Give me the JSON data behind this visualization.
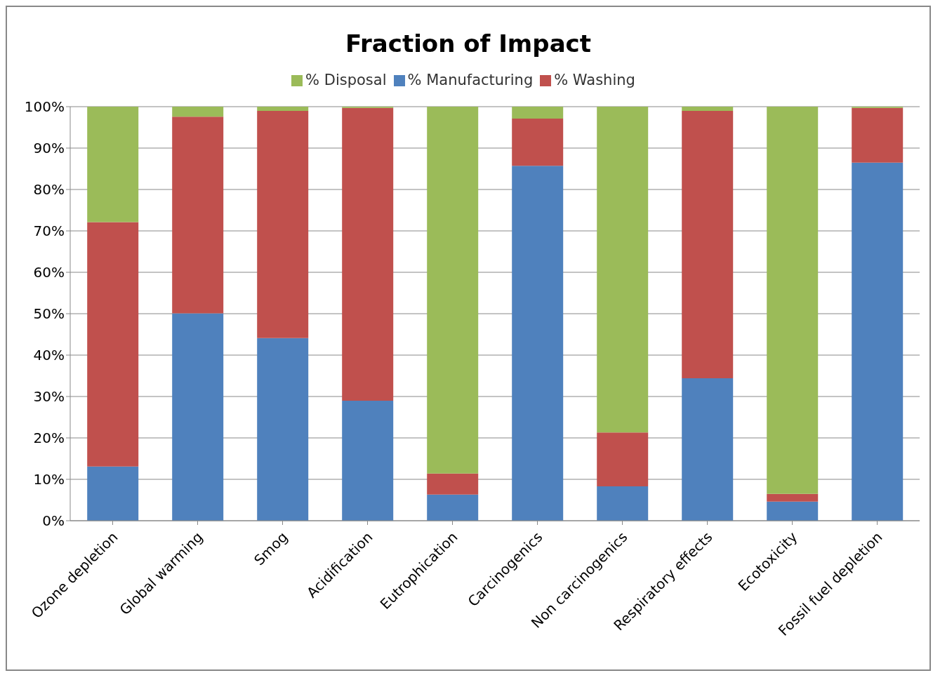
{
  "chart_data": {
    "type": "bar",
    "title": "Fraction of Impact",
    "stacked": true,
    "grid": "y",
    "legend": "top",
    "categories": [
      "Ozone depletion",
      "Global warming",
      "Smog",
      "Acidification",
      "Eutrophication",
      "Carcinogenics",
      "Non carcinogenics",
      "Respiratory effects",
      "Ecotoxicity",
      "Fossil fuel depletion"
    ],
    "series": [
      {
        "name": "% Manufacturing",
        "color": "#4f81bd",
        "values": [
          13.1,
          50.1,
          44.1,
          29.0,
          6.3,
          85.7,
          8.3,
          34.4,
          4.6,
          86.5
        ]
      },
      {
        "name": "% Washing",
        "color": "#c0504d",
        "values": [
          59.0,
          47.5,
          54.9,
          70.7,
          5.1,
          11.4,
          13.0,
          64.6,
          1.9,
          13.2
        ]
      },
      {
        "name": "% Disposal",
        "color": "#9bbb59",
        "values": [
          27.9,
          2.4,
          1.0,
          0.3,
          88.6,
          2.9,
          78.7,
          1.0,
          93.5,
          0.3
        ]
      }
    ],
    "ylim": [
      0,
      100
    ],
    "yticks": [
      {
        "value": 0,
        "label": "0%"
      },
      {
        "value": 10,
        "label": "10%"
      },
      {
        "value": 20,
        "label": "20%"
      },
      {
        "value": 30,
        "label": "30%"
      },
      {
        "value": 40,
        "label": "40%"
      },
      {
        "value": 50,
        "label": "50%"
      },
      {
        "value": 60,
        "label": "60%"
      },
      {
        "value": 70,
        "label": "70%"
      },
      {
        "value": 80,
        "label": "80%"
      },
      {
        "value": 90,
        "label": "90%"
      },
      {
        "value": 100,
        "label": "100%"
      }
    ]
  }
}
